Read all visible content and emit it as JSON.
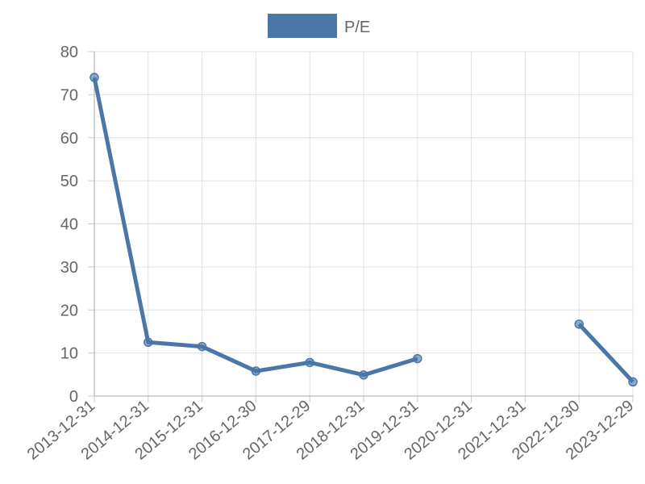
{
  "chart_data": {
    "type": "line",
    "categories": [
      "2013-12-31",
      "2014-12-31",
      "2015-12-31",
      "2016-12-30",
      "2017-12-29",
      "2018-12-31",
      "2019-12-31",
      "2020-12-31",
      "2021-12-31",
      "2022-12-30",
      "2023-12-29"
    ],
    "series": [
      {
        "name": "P/E",
        "color": "#4a76a8",
        "values": [
          74,
          12.5,
          11.5,
          5.8,
          7.8,
          4.9,
          8.7,
          null,
          null,
          16.7,
          3.3
        ]
      }
    ],
    "ylim": [
      0,
      80
    ],
    "yticks": [
      0,
      10,
      20,
      30,
      40,
      50,
      60,
      70,
      80
    ],
    "grid": true,
    "legend": "top"
  }
}
